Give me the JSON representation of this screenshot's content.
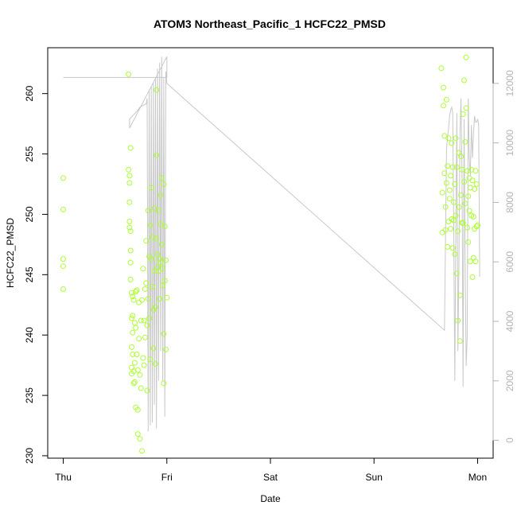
{
  "chart_data": {
    "type": "scatter",
    "title": "ATOM3 Northeast_Pacific_1 HCFC22_PMSD",
    "xlabel": "Date",
    "ylabel": "HCFC22_PMSD",
    "x_ticks": [
      "Thu",
      "Fri",
      "Sat",
      "Sun",
      "Mon"
    ],
    "x_unit": "days since Thu 00:00",
    "xlim": [
      -0.15,
      4.15
    ],
    "ylim": [
      229.8,
      263.8
    ],
    "y_ticks": [
      230,
      235,
      240,
      245,
      250,
      255,
      260
    ],
    "y2lim": [
      -600,
      13200
    ],
    "y2_ticks": [
      0,
      2000,
      4000,
      6000,
      8000,
      10000,
      12000
    ],
    "grid": false,
    "colors": {
      "points": "#adff2f",
      "line": "#c8c8c8",
      "axis": "#000000",
      "y2_axis": "#b3b3b3"
    },
    "series": [
      {
        "role": "points (left axis)",
        "x": [
          0.0,
          0.0,
          0.0,
          0.0,
          0.0,
          0.63,
          0.63,
          0.64,
          0.64,
          0.64,
          0.64,
          0.64,
          0.65,
          0.65,
          0.65,
          0.65,
          0.65,
          0.66,
          0.66,
          0.66,
          0.66,
          0.66,
          0.67,
          0.67,
          0.67,
          0.67,
          0.68,
          0.68,
          0.68,
          0.69,
          0.69,
          0.69,
          0.7,
          0.7,
          0.7,
          0.71,
          0.71,
          0.72,
          0.72,
          0.72,
          0.73,
          0.73,
          0.74,
          0.74,
          0.75,
          0.75,
          0.76,
          0.76,
          0.77,
          0.77,
          0.78,
          0.78,
          0.79,
          0.79,
          0.8,
          0.8,
          0.81,
          0.81,
          0.82,
          0.82,
          0.83,
          0.83,
          0.84,
          0.84,
          0.85,
          0.85,
          0.86,
          0.86,
          0.87,
          0.87,
          0.88,
          0.88,
          0.89,
          0.89,
          0.9,
          0.9,
          0.9,
          0.91,
          0.91,
          0.92,
          0.92,
          0.93,
          0.93,
          0.94,
          0.94,
          0.94,
          0.95,
          0.95,
          0.96,
          0.96,
          0.97,
          0.97,
          0.97,
          0.98,
          0.98,
          0.99,
          0.99,
          1.0,
          3.65,
          3.66,
          3.66,
          3.67,
          3.67,
          3.68,
          3.68,
          3.69,
          3.69,
          3.7,
          3.7,
          3.71,
          3.71,
          3.72,
          3.72,
          3.73,
          3.73,
          3.74,
          3.74,
          3.75,
          3.75,
          3.76,
          3.76,
          3.77,
          3.77,
          3.78,
          3.78,
          3.79,
          3.79,
          3.8,
          3.8,
          3.81,
          3.81,
          3.82,
          3.82,
          3.83,
          3.83,
          3.84,
          3.84,
          3.85,
          3.85,
          3.86,
          3.86,
          3.87,
          3.87,
          3.88,
          3.88,
          3.89,
          3.89,
          3.9,
          3.9,
          3.91,
          3.91,
          3.92,
          3.92,
          3.93,
          3.93,
          3.94,
          3.94,
          3.95,
          3.95,
          3.96,
          3.96,
          3.97,
          3.97,
          3.98,
          3.98,
          3.99,
          3.99,
          4.0
        ],
        "y": [
          253.0,
          250.4,
          246.3,
          245.7,
          243.8,
          261.6,
          253.7,
          253.2,
          252.6,
          251.0,
          249.4,
          248.9,
          255.5,
          248.6,
          247.0,
          246.0,
          244.6,
          243.5,
          241.4,
          239.0,
          237.3,
          236.8,
          243.2,
          241.6,
          240.2,
          238.4,
          237.0,
          236.0,
          242.9,
          241.0,
          237.7,
          236.1,
          243.6,
          240.6,
          234.0,
          243.7,
          238.4,
          237.1,
          233.8,
          231.8,
          242.7,
          239.7,
          236.7,
          231.4,
          241.2,
          235.6,
          242.9,
          230.4,
          238.1,
          245.5,
          241.2,
          237.5,
          243.8,
          239.8,
          247.8,
          244.3,
          235.4,
          240.8,
          250.3,
          243.0,
          246.5,
          241.4,
          249.1,
          238.0,
          252.2,
          246.3,
          244.0,
          248.1,
          242.1,
          238.9,
          250.5,
          245.3,
          242.3,
          237.6,
          260.3,
          254.9,
          248.0,
          246.7,
          245.6,
          250.3,
          245.3,
          246.3,
          243.0,
          249.2,
          251.6,
          246.0,
          253.0,
          247.5,
          244.1,
          245.5,
          252.5,
          240.1,
          236.0,
          249.0,
          244.5,
          246.2,
          238.8,
          243.1,
          262.1,
          248.5,
          251.8,
          260.5,
          259.0,
          256.5,
          253.4,
          248.7,
          250.6,
          259.5,
          252.6,
          254.0,
          247.3,
          249.4,
          256.3,
          252.0,
          251.3,
          248.8,
          253.2,
          249.6,
          255.9,
          247.2,
          253.9,
          249.5,
          251.0,
          246.7,
          252.5,
          256.3,
          249.9,
          245.1,
          253.9,
          248.6,
          241.2,
          255.1,
          250.6,
          243.3,
          239.5,
          254.8,
          251.6,
          249.3,
          253.7,
          258.3,
          249.3,
          261.1,
          252.7,
          256.0,
          250.9,
          263.0,
          258.8,
          253.6,
          248.9,
          251.5,
          247.7,
          253.0,
          250.3,
          252.2,
          246.1,
          253.7,
          249.9,
          252.8,
          244.8,
          249.8,
          246.4,
          252.1,
          248.8,
          253.6,
          246.1,
          252.5,
          249.0,
          249.1
        ]
      },
      {
        "role": "line (right axis)",
        "x": [
          0.0,
          1.0,
          1.0,
          0.64,
          0.64,
          0.72,
          0.74,
          0.79,
          0.8,
          0.81,
          0.82,
          0.83,
          0.84,
          0.85,
          0.86,
          0.87,
          0.88,
          0.89,
          0.9,
          0.91,
          0.92,
          0.93,
          0.94,
          0.95,
          0.96,
          0.97,
          0.98,
          0.99,
          1.0,
          3.68,
          3.7,
          3.71,
          3.72,
          3.73,
          3.74,
          3.75,
          3.76,
          3.77,
          3.78,
          3.79,
          3.8,
          3.81,
          3.82,
          3.83,
          3.84,
          3.85,
          3.86,
          3.87,
          3.88,
          3.89,
          3.9,
          3.91,
          3.92,
          3.93,
          3.94,
          3.95,
          3.96,
          3.97,
          3.98,
          3.99,
          4.0,
          4.01,
          4.02
        ],
        "y": [
          12200,
          12200,
          12900,
          10500,
          10800,
          11100,
          11200,
          11300,
          11300,
          11500,
          300,
          11800,
          500,
          11900,
          600,
          12000,
          1200,
          12200,
          400,
          12500,
          2000,
          12700,
          3000,
          12900,
          2000,
          12200,
          800,
          12400,
          12000,
          3700,
          9800,
          10200,
          10500,
          10900,
          11100,
          11200,
          11000,
          7000,
          2000,
          7000,
          11000,
          3000,
          6000,
          10300,
          11500,
          8900,
          1800,
          10800,
          6000,
          2500,
          3500,
          11500,
          9500,
          8900,
          10600,
          9500,
          10300,
          10900,
          10700,
          10700,
          10800,
          10600,
          5500
        ]
      }
    ]
  }
}
